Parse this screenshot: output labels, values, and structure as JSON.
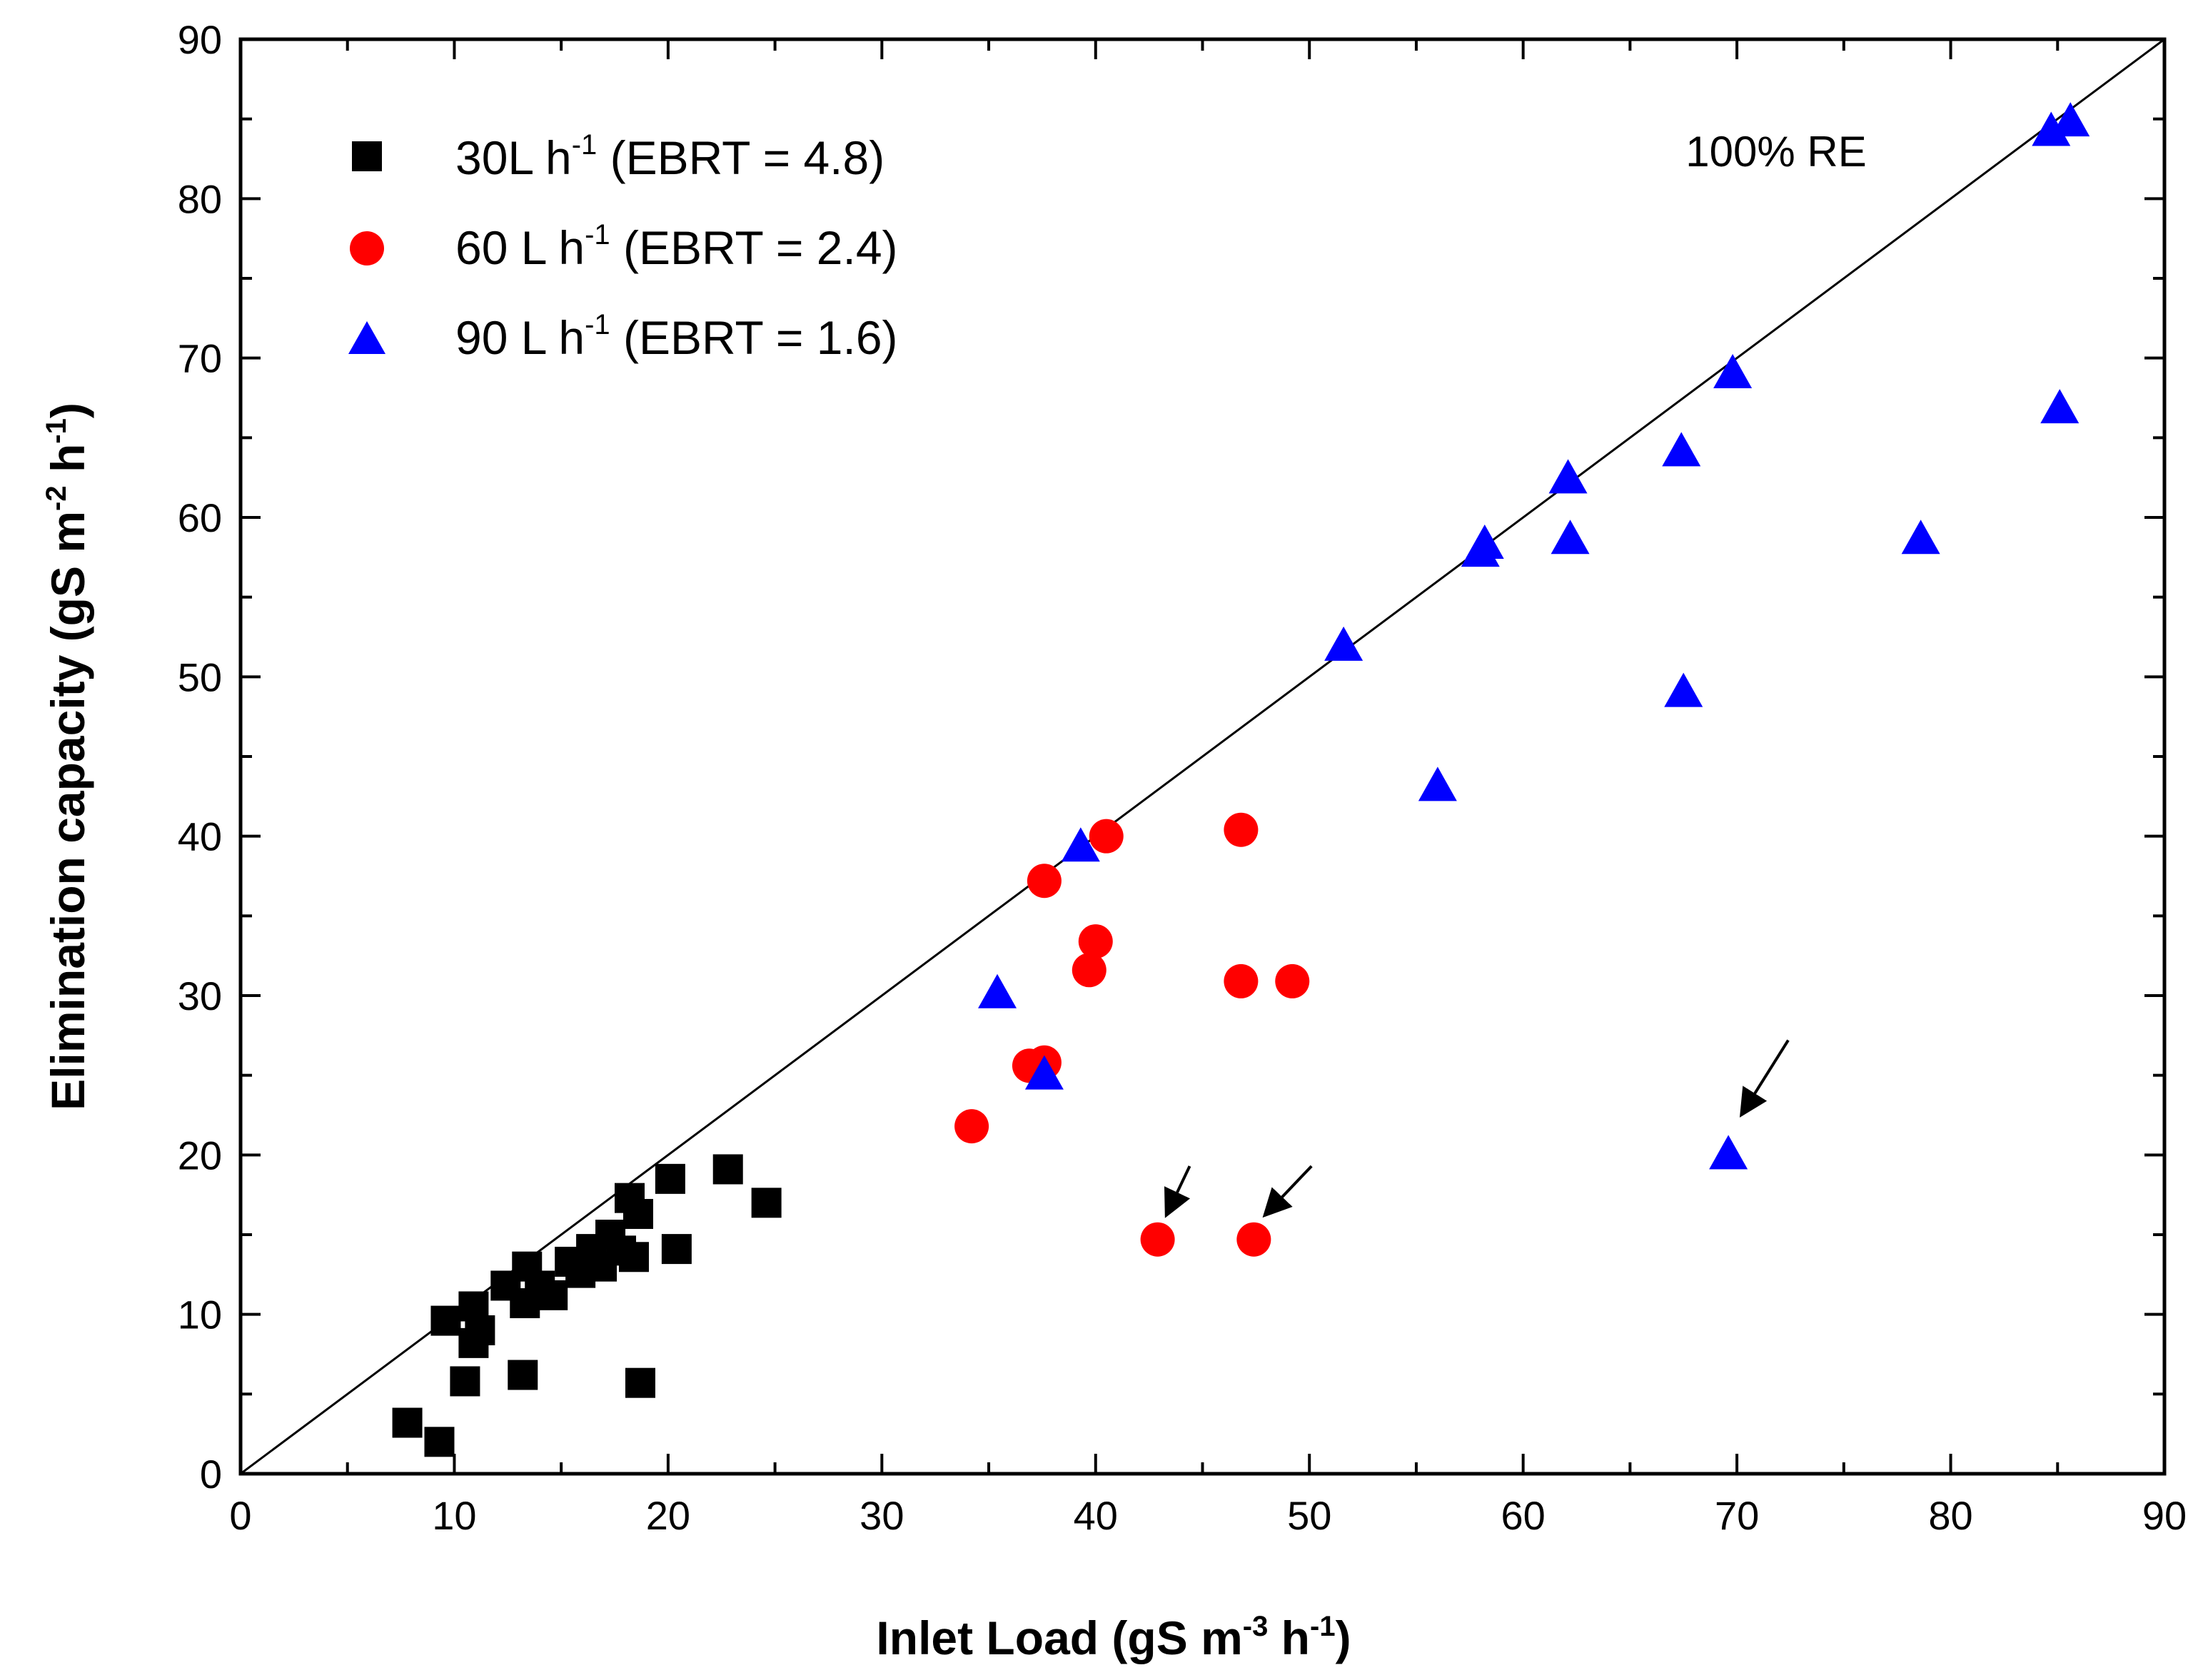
{
  "chart_data": {
    "type": "scatter",
    "xlabel": "Inlet Load (gS m-3 h-1)",
    "ylabel": "Elimination capacity (gS m-2 h-1)",
    "xlabel_parts": {
      "pre": "Inlet Load (gS m",
      "sup1": "-3",
      "mid": " h",
      "sup2": "-1",
      "post": ")"
    },
    "ylabel_parts": {
      "pre": "Elimination capacity (gS m",
      "sup1": "-2",
      "mid": " h",
      "sup2": "-1",
      "post": ")"
    },
    "xlim": [
      0,
      90
    ],
    "ylim": [
      0,
      90
    ],
    "xticks": [
      0,
      10,
      20,
      30,
      40,
      50,
      60,
      70,
      80,
      90
    ],
    "yticks": [
      0,
      10,
      20,
      30,
      40,
      50,
      60,
      70,
      80,
      90
    ],
    "grid": false,
    "legend_position": "top-left",
    "reference_line": {
      "label": "100% RE",
      "from": [
        0,
        0
      ],
      "to": [
        90,
        90
      ]
    },
    "series": [
      {
        "name": "30L h-1 (EBRT = 4.8)",
        "name_parts": {
          "pre": "30L h",
          "sup": "-1",
          "post": " (EBRT = 4.8)"
        },
        "marker": "square",
        "color": "#000000",
        "points": [
          [
            7.8,
            3.2
          ],
          [
            9.3,
            2.0
          ],
          [
            9.6,
            9.6
          ],
          [
            10.5,
            5.8
          ],
          [
            10.9,
            8.2
          ],
          [
            10.9,
            10.5
          ],
          [
            11.2,
            9.0
          ],
          [
            12.4,
            11.8
          ],
          [
            13.2,
            6.2
          ],
          [
            13.3,
            10.7
          ],
          [
            13.4,
            13.0
          ],
          [
            14.0,
            11.8
          ],
          [
            14.6,
            11.2
          ],
          [
            15.4,
            13.3
          ],
          [
            15.9,
            12.6
          ],
          [
            16.4,
            14.1
          ],
          [
            16.9,
            13.0
          ],
          [
            17.3,
            15.0
          ],
          [
            17.8,
            14.0
          ],
          [
            18.2,
            17.3
          ],
          [
            18.4,
            13.6
          ],
          [
            18.6,
            16.3
          ],
          [
            18.7,
            5.7
          ],
          [
            20.1,
            18.5
          ],
          [
            20.4,
            14.1
          ],
          [
            22.8,
            19.1
          ],
          [
            24.6,
            17.0
          ]
        ]
      },
      {
        "name": "60 L h-1 (EBRT = 2.4)",
        "name_parts": {
          "pre": "60 L h",
          "sup": "-1",
          "post": " (EBRT = 2.4)"
        },
        "marker": "circle",
        "color": "#ff0000",
        "points": [
          [
            34.2,
            21.8
          ],
          [
            36.9,
            25.6
          ],
          [
            37.6,
            25.8
          ],
          [
            37.6,
            37.2
          ],
          [
            39.7,
            31.6
          ],
          [
            40.0,
            33.4
          ],
          [
            40.5,
            40.0
          ],
          [
            42.9,
            14.7
          ],
          [
            46.8,
            40.4
          ],
          [
            46.8,
            30.9
          ],
          [
            47.4,
            14.7
          ],
          [
            49.2,
            30.9
          ]
        ]
      },
      {
        "name": "90 L h-1 (EBRT = 1.6)",
        "name_parts": {
          "pre": "90 L h",
          "sup": "-1",
          "post": " (EBRT = 1.6)"
        },
        "marker": "triangle",
        "color": "#0000ff",
        "points": [
          [
            35.4,
            30.1
          ],
          [
            37.6,
            25.0
          ],
          [
            39.3,
            39.3
          ],
          [
            51.6,
            51.9
          ],
          [
            56.0,
            43.1
          ],
          [
            58.0,
            57.8
          ],
          [
            58.2,
            58.3
          ],
          [
            62.1,
            62.4
          ],
          [
            62.2,
            58.6
          ],
          [
            67.4,
            64.1
          ],
          [
            67.5,
            49.0
          ],
          [
            69.6,
            20.0
          ],
          [
            69.8,
            69.0
          ],
          [
            78.6,
            58.6
          ],
          [
            84.7,
            84.2
          ],
          [
            85.1,
            66.8
          ],
          [
            85.6,
            84.8
          ]
        ]
      }
    ],
    "arrows": [
      {
        "from": [
          44.4,
          19.3
        ],
        "to": [
          43.3,
          16.2
        ]
      },
      {
        "from": [
          50.1,
          19.3
        ],
        "to": [
          47.9,
          16.2
        ]
      },
      {
        "from": [
          72.4,
          27.2
        ],
        "to": [
          70.2,
          22.5
        ]
      }
    ]
  }
}
